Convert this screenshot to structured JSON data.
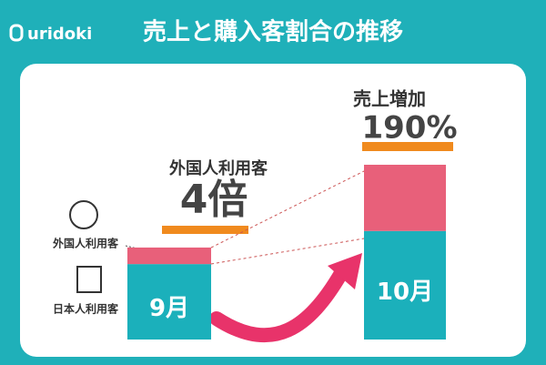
{
  "chart_data": {
    "type": "stacked_bar",
    "logo": "uridoki",
    "title": "売上と購入客割合の推移",
    "categories": [
      "9月",
      "10月"
    ],
    "series": [
      {
        "name": "日本人利用客",
        "color": "#1bb0bb",
        "values": [
          82,
          118
        ]
      },
      {
        "name": "外国人利用客",
        "color": "#e8607a",
        "values": [
          18,
          72
        ]
      }
    ],
    "annotations": [
      {
        "title": "外国人利用客",
        "value": "4倍"
      },
      {
        "title": "売上増加",
        "value": "190%"
      }
    ]
  }
}
